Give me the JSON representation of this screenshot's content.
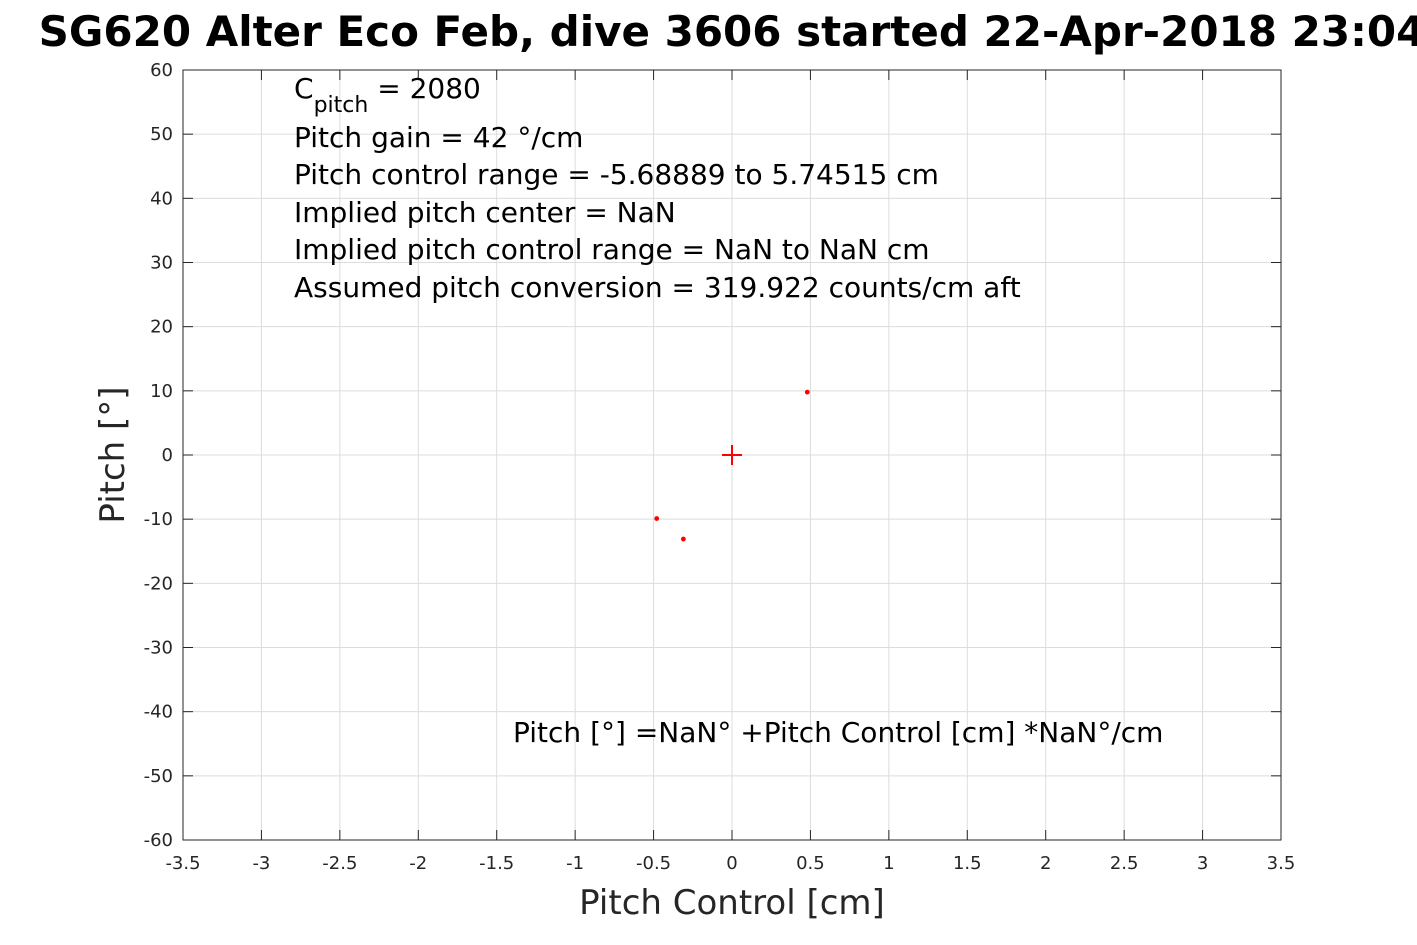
{
  "chart_data": {
    "type": "scatter",
    "title": "SG620 Alter Eco Feb, dive 3606 started 22-Apr-2018 23:04",
    "xlabel": "Pitch Control [cm]",
    "ylabel": "Pitch [°]",
    "xlim": [
      -3.5,
      3.5
    ],
    "ylim": [
      -60,
      60
    ],
    "xticks": [
      -3.5,
      -3,
      -2.5,
      -2,
      -1.5,
      -1,
      -0.5,
      0,
      0.5,
      1,
      1.5,
      2,
      2.5,
      3,
      3.5
    ],
    "xtick_labels": [
      "-3.5",
      "-3",
      "-2.5",
      "-2",
      "-1.5",
      "-1",
      "-0.5",
      "0",
      "0.5",
      "1",
      "1.5",
      "2",
      "2.5",
      "3",
      "3.5"
    ],
    "yticks": [
      60,
      50,
      40,
      30,
      20,
      10,
      0,
      -10,
      -20,
      -30,
      -40,
      -50,
      -60
    ],
    "ytick_labels": [
      "60",
      "50",
      "40",
      "30",
      "20",
      "10",
      "0",
      "-10",
      "-20",
      "-30",
      "-40",
      "-50",
      "-60"
    ],
    "grid": true,
    "color": "#ff0000",
    "points": [
      {
        "x": 0.48,
        "y": 9.8
      },
      {
        "x": -0.48,
        "y": -9.9
      },
      {
        "x": -0.31,
        "y": -13.1
      }
    ],
    "center_marker": {
      "x": 0,
      "y": 0,
      "marker": "plus"
    },
    "annotations": {
      "c_pitch_main": "C",
      "c_pitch_sub": "pitch",
      "c_pitch_value": " = 2080",
      "lines": [
        "Pitch gain = 42 °/cm",
        "Pitch control range = -5.68889 to 5.74515 cm",
        "Implied pitch center = NaN",
        "Implied pitch control range = NaN to NaN cm",
        "Assumed pitch conversion = 319.922 counts/cm aft"
      ],
      "fit_equation": "Pitch [°] =NaN° +Pitch Control [cm] *NaN°/cm"
    }
  }
}
